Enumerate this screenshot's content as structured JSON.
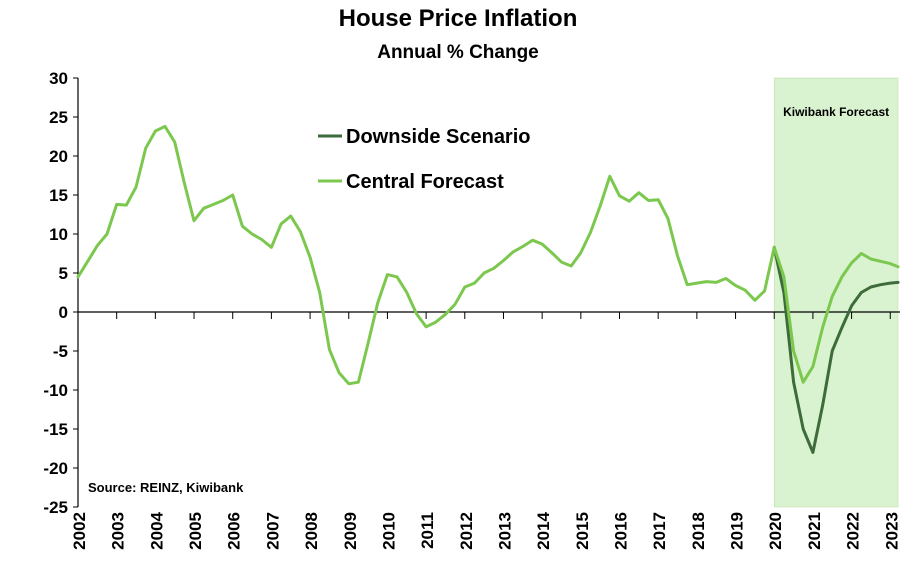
{
  "chart_data": {
    "type": "line",
    "title": "House Price Inflation",
    "subtitle": "Annual % Change",
    "ylim": [
      -25,
      30
    ],
    "yticks": [
      30,
      25,
      20,
      15,
      10,
      5,
      0,
      -5,
      -10,
      -15,
      -20,
      -25
    ],
    "xlim": [
      2002,
      2023.2
    ],
    "xticks": [
      "2002",
      "2003",
      "2004",
      "2005",
      "2006",
      "2007",
      "2008",
      "2009",
      "2010",
      "2011",
      "2012",
      "2013",
      "2014",
      "2015",
      "2016",
      "2017",
      "2018",
      "2019",
      "2020",
      "2021",
      "2022",
      "2023"
    ],
    "grid": false,
    "legend_position": "top-center",
    "source": "Source: REINZ, Kiwibank",
    "shaded_region": {
      "label": "Kiwibank Forecast",
      "x_start": 2020.0,
      "x_end": 2023.2,
      "color": "#d9f2d0"
    },
    "series": [
      {
        "name": "Downside Scenario",
        "color": "#3d6b3a",
        "x": [
          2020.0,
          2020.25,
          2020.5,
          2020.75,
          2021.0,
          2021.25,
          2021.5,
          2021.75,
          2022.0,
          2022.25,
          2022.5,
          2022.75,
          2023.0,
          2023.2
        ],
        "values": [
          8.3,
          2.5,
          -9.0,
          -15.0,
          -18.0,
          -12.0,
          -5.0,
          -2.0,
          0.8,
          2.5,
          3.2,
          3.5,
          3.7,
          3.8
        ]
      },
      {
        "name": "Central Forecast",
        "color": "#7cc84e",
        "x": [
          2002.0,
          2002.25,
          2002.5,
          2002.75,
          2003.0,
          2003.25,
          2003.5,
          2003.75,
          2004.0,
          2004.25,
          2004.5,
          2004.75,
          2005.0,
          2005.25,
          2005.5,
          2005.75,
          2006.0,
          2006.25,
          2006.5,
          2006.75,
          2007.0,
          2007.25,
          2007.5,
          2007.75,
          2008.0,
          2008.25,
          2008.5,
          2008.75,
          2009.0,
          2009.25,
          2009.5,
          2009.75,
          2010.0,
          2010.25,
          2010.5,
          2010.75,
          2011.0,
          2011.25,
          2011.5,
          2011.75,
          2012.0,
          2012.25,
          2012.5,
          2012.75,
          2013.0,
          2013.25,
          2013.5,
          2013.75,
          2014.0,
          2014.25,
          2014.5,
          2014.75,
          2015.0,
          2015.25,
          2015.5,
          2015.75,
          2016.0,
          2016.25,
          2016.5,
          2016.75,
          2017.0,
          2017.25,
          2017.5,
          2017.75,
          2018.0,
          2018.25,
          2018.5,
          2018.75,
          2019.0,
          2019.25,
          2019.5,
          2019.75,
          2020.0,
          2020.25,
          2020.5,
          2020.75,
          2021.0,
          2021.25,
          2021.5,
          2021.75,
          2022.0,
          2022.25,
          2022.5,
          2022.75,
          2023.0,
          2023.2
        ],
        "values": [
          4.5,
          6.5,
          8.5,
          10.0,
          13.8,
          13.7,
          16.0,
          21.0,
          23.2,
          23.8,
          21.8,
          16.5,
          11.7,
          13.3,
          13.8,
          14.3,
          15.0,
          11.0,
          10.0,
          9.3,
          8.3,
          11.3,
          12.3,
          10.3,
          7.0,
          2.5,
          -4.8,
          -7.8,
          -9.2,
          -9.0,
          -4.0,
          1.2,
          4.8,
          4.5,
          2.5,
          -0.2,
          -1.9,
          -1.3,
          -0.3,
          1.0,
          3.2,
          3.7,
          5.0,
          5.6,
          6.6,
          7.7,
          8.4,
          9.2,
          8.7,
          7.6,
          6.4,
          5.9,
          7.6,
          10.2,
          13.6,
          17.4,
          14.9,
          14.2,
          15.3,
          14.3,
          14.4,
          12.0,
          7.2,
          3.5,
          3.7,
          3.9,
          3.8,
          4.3,
          3.4,
          2.8,
          1.5,
          2.7,
          8.3,
          4.5,
          -5.0,
          -9.0,
          -7.0,
          -2.0,
          2.0,
          4.5,
          6.3,
          7.5,
          6.8,
          6.5,
          6.2,
          5.8
        ]
      }
    ]
  }
}
